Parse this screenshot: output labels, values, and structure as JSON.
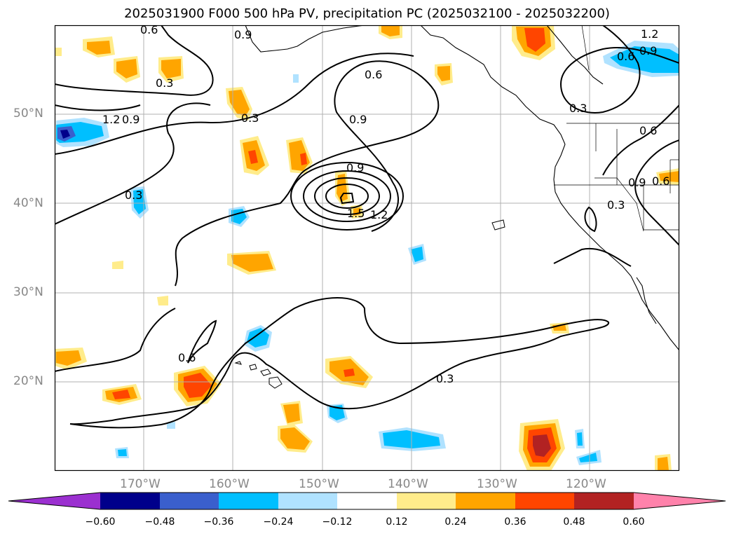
{
  "title": "2025031900 F000 500 hPa PV, precipitation PC (2025032100 - 2025032200)",
  "axes": {
    "lat_labels": [
      "50°N",
      "40°N",
      "30°N",
      "20°N"
    ],
    "lon_labels": [
      "170°W",
      "160°W",
      "150°W",
      "140°W",
      "130°W",
      "120°W"
    ],
    "grid": true,
    "extent": {
      "lon_min": -180,
      "lon_max": -110,
      "lat_min": 10,
      "lat_max": 60
    }
  },
  "contour_labels": [
    "0.6",
    "0.9",
    "0.3",
    "0.6",
    "0.9",
    "0.9",
    "1.2",
    "0.3",
    "0.9",
    "1.5",
    "1.2",
    "0.6",
    "0.3",
    "0.3",
    "0.9",
    "0.6",
    "0.9",
    "1.2",
    "0.6",
    "0.6"
  ],
  "colorbar": {
    "ticks": [
      "−0.60",
      "−0.48",
      "−0.36",
      "−0.24",
      "−0.12",
      "0.12",
      "0.24",
      "0.36",
      "0.48",
      "0.60"
    ],
    "colors": [
      "#9b30d0",
      "#00008b",
      "#3a5fcd",
      "#00bfff",
      "#b0e2ff",
      "#ffffff",
      "#ffec8b",
      "#ffa500",
      "#ff4500",
      "#b22222",
      "#ff82ab"
    ],
    "extend": "both"
  },
  "colors": {
    "pos_light": "#ffec8b",
    "pos_mid": "#ffa500",
    "pos_strong": "#ff4500",
    "pos_max": "#b22222",
    "neg_light": "#b0e2ff",
    "neg_mid": "#00bfff",
    "neg_strong": "#3a5fcd",
    "neg_max": "#00008b",
    "grid": "#b0b0b0",
    "contour": "#000000"
  }
}
